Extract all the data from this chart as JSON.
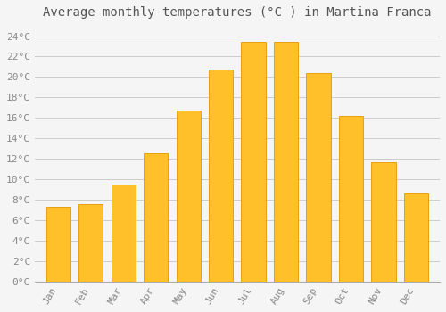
{
  "title": "Average monthly temperatures (°C ) in Martina Franca",
  "months": [
    "Jan",
    "Feb",
    "Mar",
    "Apr",
    "May",
    "Jun",
    "Jul",
    "Aug",
    "Sep",
    "Oct",
    "Nov",
    "Dec"
  ],
  "values": [
    7.3,
    7.6,
    9.5,
    12.5,
    16.7,
    20.7,
    23.4,
    23.4,
    20.4,
    16.2,
    11.7,
    8.6
  ],
  "bar_color": "#FFC02A",
  "bar_edge_color": "#E8A010",
  "background_color": "#F5F5F5",
  "grid_color": "#CCCCCC",
  "text_color": "#888888",
  "title_color": "#555555",
  "ylim": [
    0,
    25
  ],
  "ytick_step": 2,
  "title_fontsize": 10,
  "tick_fontsize": 8,
  "font_family": "monospace"
}
